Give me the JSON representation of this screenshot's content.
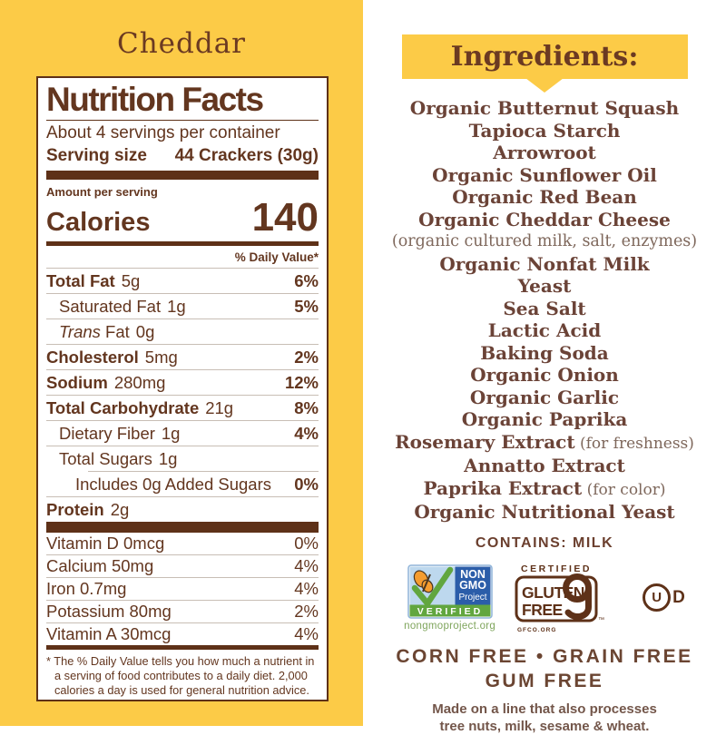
{
  "colors": {
    "panel_yellow": "#FCCB47",
    "label_brown": "#63361F",
    "bar_brown": "#5E3118",
    "ingredient_brown": "#6B4337",
    "nongmo_blue": "#2B5DA9",
    "nongmo_sky": "#BDD8EE",
    "nongmo_green": "#61A63F",
    "butterfly_orange": "#F59C2F"
  },
  "left_panel": {
    "title": "Cheddar",
    "nutrition": {
      "title": "Nutrition Facts",
      "servings_per_container": "About 4 servings per container",
      "serving_size_label": "Serving size",
      "serving_size_value": "44 Crackers (30g)",
      "amount_per_serving": "Amount per serving",
      "calories_label": "Calories",
      "calories_value": "140",
      "daily_value_header": "% Daily Value*",
      "rows": [
        {
          "name": "Total Fat",
          "name_bold": true,
          "amount": "5g",
          "dv": "6%",
          "dv_bold": true
        },
        {
          "name": "Saturated Fat",
          "amount": "1g",
          "dv": "5%",
          "dv_bold": true,
          "indent": 14
        },
        {
          "name": "Trans",
          "name_italic": true,
          "suffix": "Fat",
          "amount": "0g",
          "indent": 14
        },
        {
          "name": "Cholesterol",
          "name_bold": true,
          "amount": "5mg",
          "dv": "2%",
          "dv_bold": true
        },
        {
          "name": "Sodium",
          "name_bold": true,
          "amount": "280mg",
          "dv": "12%",
          "dv_bold": true
        },
        {
          "name": "Total Carbohydrate",
          "name_bold": true,
          "amount": "21g",
          "dv": "8%",
          "dv_bold": true
        },
        {
          "name": "Dietary Fiber",
          "amount": "1g",
          "dv": "4%",
          "dv_bold": true,
          "indent": 14
        },
        {
          "name": "Total Sugars",
          "amount": "1g",
          "indent": 14
        },
        {
          "name": "Includes 0g Added Sugars",
          "dv": "0%",
          "dv_bold": true,
          "indent": 32,
          "sep_indent": 46
        },
        {
          "name": "Protein",
          "name_bold": true,
          "amount": "2g"
        }
      ],
      "micros": [
        {
          "name": "Vitamin D 0mcg",
          "dv": "0%"
        },
        {
          "name": "Calcium 50mg",
          "dv": "4%"
        },
        {
          "name": "Iron 0.7mg",
          "dv": "4%"
        },
        {
          "name": "Potassium 80mg",
          "dv": "2%"
        },
        {
          "name": "Vitamin A 30mcg",
          "dv": "4%"
        }
      ],
      "footnote": "* The % Daily Value tells you how much a nutrient in a serving of food contributes to a daily diet. 2,000 calories a day is used for general nutrition advice."
    }
  },
  "right_panel": {
    "header": "Ingredients:",
    "ingredients": [
      {
        "text": "Organic Butternut Squash"
      },
      {
        "text": "Tapioca Starch"
      },
      {
        "text": "Arrowroot"
      },
      {
        "text": "Organic Sunflower Oil"
      },
      {
        "text": "Organic Red Bean"
      },
      {
        "text": "Organic Cheddar Cheese"
      },
      {
        "text": "(organic cultured milk, salt, enzymes)",
        "style": "note"
      },
      {
        "text": "Organic Nonfat Milk"
      },
      {
        "text": "Yeast"
      },
      {
        "text": "Sea Salt"
      },
      {
        "text": "Lactic Acid"
      },
      {
        "text": "Baking Soda"
      },
      {
        "text": "Organic Onion"
      },
      {
        "text": "Organic Garlic"
      },
      {
        "text": "Organic Paprika"
      },
      {
        "text": "Rosemary Extract",
        "note": " (for freshness)"
      },
      {
        "text": "Annatto Extract"
      },
      {
        "text": "Paprika Extract",
        "note": " (for color)"
      },
      {
        "text": "Organic Nutritional Yeast"
      }
    ],
    "contains": "CONTAINS: MILK",
    "badges": {
      "non_gmo": {
        "line1": "NON",
        "line2": "GMO",
        "line3": "Project",
        "verified": "VERIFIED",
        "url": "nongmoproject.org"
      },
      "gluten_free": {
        "certified": "CERTIFIED",
        "line1": "GLUTEN",
        "line2": "FREE",
        "tm": "™",
        "org": "GFCO.ORG"
      },
      "kosher": {
        "u": "U",
        "d": "D"
      }
    },
    "claims_line1": "CORN FREE • GRAIN FREE",
    "claims_line2": "GUM FREE",
    "allergen_line1": "Made on a line that also processes",
    "allergen_line2": "tree nuts, milk, sesame & wheat."
  }
}
